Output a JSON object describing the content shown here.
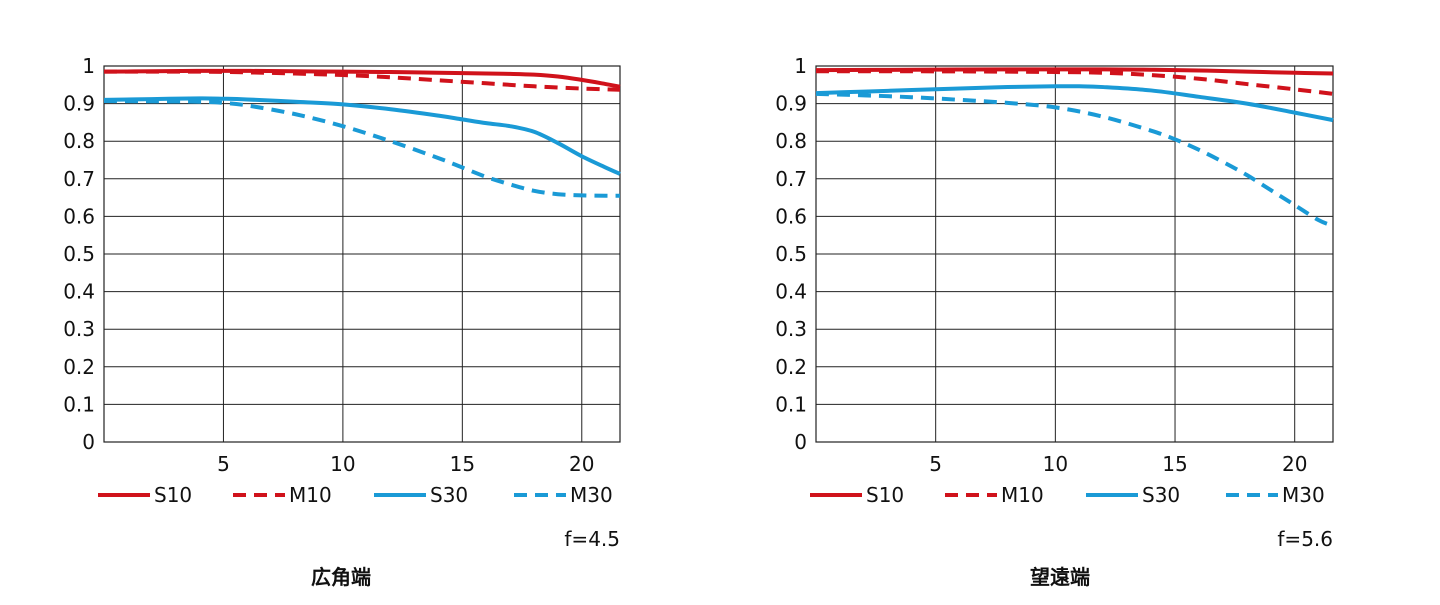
{
  "chart_data": [
    {
      "type": "line",
      "title": "広角端",
      "aperture_label": "f=4.5",
      "xlim": [
        0,
        21.6
      ],
      "ylim": [
        0,
        1
      ],
      "x_ticks": [
        5,
        10,
        15,
        20
      ],
      "y_ticks": [
        0,
        0.1,
        0.2,
        0.3,
        0.4,
        0.5,
        0.6,
        0.7,
        0.8,
        0.9,
        1
      ],
      "y_tick_labels": [
        "0",
        "0.1",
        "0.2",
        "0.3",
        "0.4",
        "0.5",
        "0.6",
        "0.7",
        "0.8",
        "0.9",
        "1"
      ],
      "grid": true,
      "legend_position": "bottom",
      "series": [
        {
          "name": "S10",
          "color": "#d0121b",
          "dash": "solid",
          "x": [
            0,
            2,
            4,
            6,
            8,
            10,
            12,
            14,
            16,
            17,
            18,
            19,
            20,
            21,
            21.6
          ],
          "y": [
            0.985,
            0.986,
            0.987,
            0.987,
            0.986,
            0.985,
            0.984,
            0.982,
            0.98,
            0.979,
            0.977,
            0.972,
            0.963,
            0.952,
            0.945
          ]
        },
        {
          "name": "M10",
          "color": "#d0121b",
          "dash": "dashed",
          "x": [
            0,
            2,
            4,
            6,
            8,
            10,
            12,
            14,
            16,
            18,
            20,
            21.6
          ],
          "y": [
            0.985,
            0.985,
            0.985,
            0.983,
            0.98,
            0.976,
            0.97,
            0.962,
            0.954,
            0.946,
            0.94,
            0.937
          ]
        },
        {
          "name": "S30",
          "color": "#1a9ad6",
          "dash": "solid",
          "x": [
            0,
            2,
            4,
            5,
            6,
            8,
            10,
            12,
            14,
            15,
            16,
            17,
            18,
            19,
            20,
            21,
            21.6
          ],
          "y": [
            0.91,
            0.912,
            0.914,
            0.913,
            0.911,
            0.905,
            0.898,
            0.885,
            0.868,
            0.858,
            0.848,
            0.84,
            0.825,
            0.795,
            0.76,
            0.73,
            0.713
          ]
        },
        {
          "name": "M30",
          "color": "#1a9ad6",
          "dash": "dashed",
          "x": [
            0,
            2,
            4,
            5,
            6,
            8,
            10,
            12,
            14,
            15,
            16,
            17,
            18,
            19,
            20,
            21,
            21.6
          ],
          "y": [
            0.907,
            0.906,
            0.905,
            0.902,
            0.895,
            0.872,
            0.84,
            0.8,
            0.755,
            0.73,
            0.705,
            0.685,
            0.668,
            0.659,
            0.656,
            0.655,
            0.655
          ]
        }
      ]
    },
    {
      "type": "line",
      "title": "望遠端",
      "aperture_label": "f=5.6",
      "xlim": [
        0,
        21.6
      ],
      "ylim": [
        0,
        1
      ],
      "x_ticks": [
        5,
        10,
        15,
        20
      ],
      "y_ticks": [
        0,
        0.1,
        0.2,
        0.3,
        0.4,
        0.5,
        0.6,
        0.7,
        0.8,
        0.9,
        1
      ],
      "y_tick_labels": [
        "0",
        "0.1",
        "0.2",
        "0.3",
        "0.4",
        "0.5",
        "0.6",
        "0.7",
        "0.8",
        "0.9",
        "1"
      ],
      "grid": true,
      "legend_position": "bottom",
      "series": [
        {
          "name": "S10",
          "color": "#d0121b",
          "dash": "solid",
          "x": [
            0,
            4,
            8,
            12,
            14,
            16,
            18,
            20,
            21.6
          ],
          "y": [
            0.989,
            0.99,
            0.991,
            0.991,
            0.99,
            0.988,
            0.985,
            0.982,
            0.98
          ]
        },
        {
          "name": "M10",
          "color": "#d0121b",
          "dash": "dashed",
          "x": [
            0,
            4,
            8,
            10,
            12,
            14,
            16,
            18,
            20,
            21.6
          ],
          "y": [
            0.986,
            0.986,
            0.985,
            0.984,
            0.982,
            0.976,
            0.966,
            0.952,
            0.938,
            0.926
          ]
        },
        {
          "name": "S30",
          "color": "#1a9ad6",
          "dash": "solid",
          "x": [
            0,
            2,
            4,
            6,
            8,
            10,
            11,
            12,
            14,
            16,
            18,
            20,
            21.6
          ],
          "y": [
            0.928,
            0.932,
            0.936,
            0.94,
            0.944,
            0.946,
            0.946,
            0.944,
            0.935,
            0.918,
            0.9,
            0.876,
            0.856
          ]
        },
        {
          "name": "M30",
          "color": "#1a9ad6",
          "dash": "dashed",
          "x": [
            0,
            2,
            4,
            6,
            8,
            10,
            12,
            14,
            15,
            16,
            17,
            18,
            19,
            20,
            21,
            21.6
          ],
          "y": [
            0.926,
            0.922,
            0.917,
            0.91,
            0.902,
            0.89,
            0.865,
            0.828,
            0.805,
            0.777,
            0.745,
            0.71,
            0.67,
            0.63,
            0.59,
            0.575
          ]
        }
      ]
    }
  ]
}
